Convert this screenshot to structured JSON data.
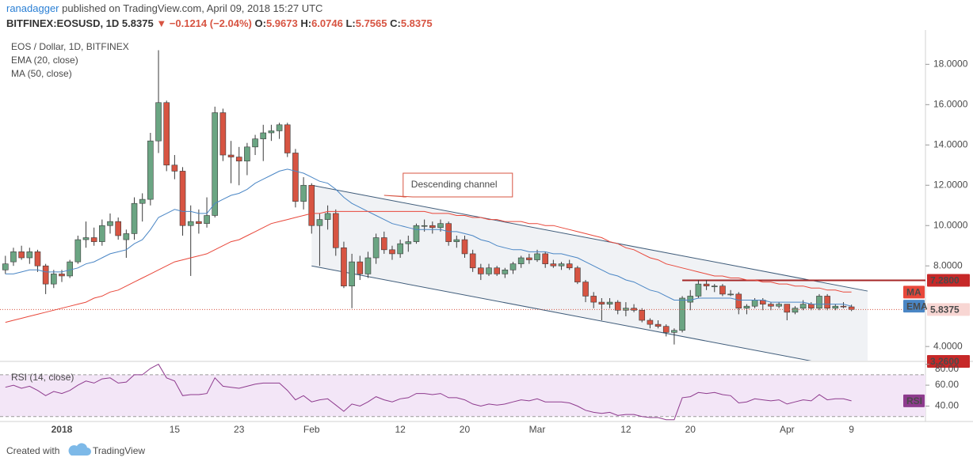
{
  "header": {
    "author": "ranadagger",
    "published": "published on TradingView.com, April 09, 2018 15:27 UTC",
    "symbol": "BITFINEX:EOSUSD, 1D",
    "last": "5.8375",
    "change": "▼ −0.1214 (−2.04%)",
    "ohlc": [
      {
        "label": "O:",
        "value": "5.9673"
      },
      {
        "label": "H:",
        "value": "6.0746"
      },
      {
        "label": "L:",
        "value": "5.7565"
      },
      {
        "label": "C:",
        "value": "5.8375"
      }
    ]
  },
  "chart_data": [
    {
      "type": "candlestick",
      "title": "EOS / Dollar, 1D, BITFINEX",
      "categories": [
        null,
        null,
        null,
        null,
        null,
        null,
        null,
        "2018",
        null,
        null,
        null,
        null,
        null,
        null,
        null,
        null,
        null,
        null,
        null,
        null,
        null,
        "15",
        null,
        null,
        null,
        null,
        null,
        null,
        null,
        "23",
        null,
        null,
        null,
        null,
        null,
        null,
        null,
        null,
        "Feb",
        null,
        null,
        null,
        null,
        null,
        null,
        null,
        null,
        null,
        null,
        "12",
        null,
        null,
        null,
        null,
        null,
        null,
        null,
        "20",
        null,
        null,
        null,
        null,
        null,
        null,
        null,
        null,
        "Mar",
        null,
        null,
        null,
        null,
        null,
        null,
        null,
        null,
        null,
        null,
        "12",
        null,
        null,
        null,
        null,
        null,
        null,
        null,
        "20",
        null,
        null,
        null,
        null,
        null,
        null,
        null,
        null,
        null,
        null,
        null,
        "Apr",
        null,
        null,
        null,
        null,
        null,
        null,
        null,
        "9"
      ],
      "open": [
        7.8,
        8.2,
        8.7,
        8.4,
        8.7,
        8.0,
        7.1,
        7.6,
        7.5,
        8.2,
        9.3,
        9.4,
        9.2,
        10.0,
        10.2,
        9.3,
        9.6,
        11.1,
        11.3,
        14.2,
        16.1,
        13.0,
        12.7,
        10.0,
        10.2,
        10.1,
        10.5,
        15.6,
        13.5,
        13.4,
        13.2,
        13.9,
        14.3,
        14.6,
        14.7,
        15.0,
        13.6,
        11.2,
        12.0,
        10.0,
        10.3,
        10.6,
        8.9,
        7.0,
        8.2,
        7.6,
        8.4,
        9.4,
        8.8,
        8.6,
        9.1,
        9.2,
        10.0,
        10.0,
        9.9,
        10.1,
        9.2,
        9.3,
        8.6,
        7.9,
        7.6,
        7.9,
        7.6,
        7.8,
        8.1,
        8.4,
        8.3,
        8.6,
        8.1,
        8.0,
        8.1,
        7.9,
        7.2,
        6.5,
        6.2,
        6.1,
        6.2,
        5.8,
        5.9,
        5.8,
        5.3,
        5.1,
        5.0,
        4.7,
        4.8,
        6.2,
        6.5,
        7.1,
        7.0,
        7.0,
        6.6,
        6.6,
        5.9,
        6.0,
        6.3,
        6.1,
        6.0,
        6.1,
        5.7,
        5.9,
        6.1,
        5.9,
        6.5,
        5.9,
        6.0,
        5.9673
      ],
      "high": [
        8.5,
        8.9,
        9.0,
        8.9,
        8.8,
        8.1,
        7.8,
        7.8,
        8.3,
        9.5,
        10.2,
        9.9,
        10.3,
        10.6,
        10.4,
        9.8,
        11.4,
        11.6,
        14.6,
        18.7,
        16.2,
        13.5,
        12.9,
        11.0,
        10.8,
        11.4,
        15.9,
        15.8,
        14.2,
        13.9,
        14.1,
        14.5,
        15.0,
        15.0,
        15.1,
        15.1,
        13.8,
        12.4,
        12.1,
        10.6,
        11.0,
        10.8,
        9.2,
        8.6,
        8.5,
        8.7,
        9.6,
        9.7,
        9.0,
        9.3,
        9.5,
        10.1,
        10.3,
        10.2,
        10.3,
        10.2,
        9.5,
        9.5,
        8.8,
        8.1,
        8.1,
        8.0,
        7.9,
        8.2,
        8.5,
        8.6,
        8.8,
        8.7,
        8.3,
        8.2,
        8.3,
        8.0,
        7.3,
        6.7,
        6.4,
        6.4,
        6.3,
        6.2,
        6.1,
        5.9,
        5.4,
        5.3,
        5.1,
        4.9,
        6.5,
        6.8,
        7.3,
        7.3,
        7.1,
        7.1,
        6.8,
        6.7,
        6.1,
        6.4,
        6.4,
        6.2,
        6.2,
        6.1,
        6.0,
        6.3,
        6.2,
        6.6,
        6.6,
        6.1,
        6.2,
        6.0746
      ],
      "low": [
        7.6,
        8.0,
        8.3,
        8.1,
        7.7,
        6.6,
        6.9,
        7.2,
        7.4,
        8.1,
        8.9,
        9.0,
        9.0,
        9.6,
        9.3,
        8.4,
        9.3,
        10.2,
        11.0,
        13.6,
        12.7,
        12.3,
        9.5,
        7.5,
        9.6,
        9.9,
        10.4,
        13.2,
        12.1,
        12.0,
        12.5,
        13.5,
        13.2,
        14.2,
        14.3,
        13.4,
        10.9,
        10.8,
        9.6,
        8.0,
        9.8,
        8.5,
        6.9,
        5.9,
        7.3,
        7.4,
        8.1,
        8.6,
        8.3,
        8.4,
        8.7,
        9.1,
        9.7,
        9.6,
        9.7,
        9.0,
        8.9,
        8.4,
        7.7,
        7.3,
        7.5,
        7.5,
        7.4,
        7.6,
        7.9,
        8.1,
        8.2,
        7.9,
        7.9,
        7.8,
        7.8,
        7.1,
        6.2,
        5.9,
        5.3,
        5.9,
        5.6,
        5.5,
        5.7,
        5.2,
        4.9,
        4.9,
        4.5,
        4.1,
        4.7,
        5.8,
        6.4,
        6.8,
        6.7,
        6.5,
        6.5,
        5.6,
        5.6,
        5.9,
        5.8,
        5.8,
        5.9,
        5.3,
        5.6,
        5.8,
        5.8,
        5.8,
        5.8,
        5.8,
        5.9,
        5.7565
      ],
      "close": [
        8.1,
        8.7,
        8.4,
        8.7,
        8.0,
        7.1,
        7.6,
        7.5,
        8.2,
        9.3,
        9.4,
        9.2,
        10.0,
        10.2,
        9.5,
        9.6,
        11.1,
        11.3,
        14.2,
        16.1,
        13.0,
        12.7,
        10.0,
        10.2,
        10.1,
        10.5,
        15.6,
        13.5,
        13.4,
        13.2,
        13.9,
        14.3,
        14.6,
        14.7,
        15.0,
        13.6,
        11.2,
        12.0,
        10.0,
        10.3,
        10.6,
        8.9,
        7.0,
        8.2,
        7.6,
        8.4,
        9.4,
        8.8,
        8.6,
        9.1,
        9.2,
        10.0,
        10.0,
        9.9,
        10.1,
        9.2,
        9.3,
        8.6,
        7.9,
        7.6,
        7.9,
        7.6,
        7.8,
        8.1,
        8.4,
        8.3,
        8.6,
        8.1,
        8.0,
        8.1,
        7.9,
        7.2,
        6.5,
        6.2,
        6.1,
        6.2,
        5.8,
        5.9,
        5.8,
        5.3,
        5.1,
        5.0,
        4.7,
        4.8,
        6.4,
        6.5,
        7.1,
        7.0,
        7.0,
        6.6,
        6.6,
        5.9,
        6.0,
        6.3,
        6.1,
        6.0,
        6.1,
        5.7,
        5.9,
        6.1,
        5.9,
        6.5,
        5.9,
        6.0,
        5.97,
        5.8375
      ],
      "up_color": "#6ba583",
      "down_color": "#d75442",
      "series": [
        {
          "name": "EMA (20, close)",
          "tag": "EMA",
          "color": "#4a86c5",
          "values": [
            7.6,
            7.6,
            7.7,
            7.8,
            7.8,
            7.7,
            7.7,
            7.7,
            7.8,
            7.9,
            8.1,
            8.2,
            8.4,
            8.6,
            8.7,
            8.8,
            9.1,
            9.3,
            9.8,
            10.4,
            10.6,
            10.8,
            10.7,
            10.7,
            10.6,
            10.6,
            11.1,
            11.3,
            11.5,
            11.6,
            11.8,
            12.1,
            12.3,
            12.5,
            12.7,
            12.8,
            12.7,
            12.6,
            12.4,
            12.2,
            12.1,
            11.8,
            11.4,
            11.1,
            10.9,
            10.7,
            10.5,
            10.3,
            10.1,
            10.0,
            9.9,
            9.8,
            9.8,
            9.8,
            9.8,
            9.7,
            9.7,
            9.6,
            9.5,
            9.3,
            9.2,
            9.0,
            8.9,
            8.8,
            8.8,
            8.7,
            8.7,
            8.7,
            8.6,
            8.6,
            8.5,
            8.4,
            8.2,
            8.0,
            7.8,
            7.6,
            7.5,
            7.3,
            7.2,
            7.0,
            6.8,
            6.7,
            6.5,
            6.3,
            6.3,
            6.3,
            6.4,
            6.4,
            6.4,
            6.4,
            6.4,
            6.3,
            6.3,
            6.3,
            6.3,
            6.2,
            6.2,
            6.2,
            6.2,
            6.2,
            6.1,
            6.1,
            6.1,
            6.1,
            6.1,
            6.0
          ]
        },
        {
          "name": "MA (50, close)",
          "tag": "MA",
          "color": "#e8473a",
          "values": [
            5.2,
            5.3,
            5.4,
            5.5,
            5.6,
            5.7,
            5.8,
            5.9,
            6.0,
            6.1,
            6.2,
            6.4,
            6.5,
            6.7,
            6.8,
            7.0,
            7.2,
            7.4,
            7.6,
            7.8,
            8.0,
            8.2,
            8.3,
            8.4,
            8.5,
            8.6,
            8.8,
            9.0,
            9.2,
            9.3,
            9.5,
            9.7,
            9.9,
            10.1,
            10.2,
            10.3,
            10.4,
            10.5,
            10.6,
            10.6,
            10.7,
            10.7,
            10.7,
            10.7,
            10.7,
            10.7,
            10.7,
            10.7,
            10.7,
            10.7,
            10.7,
            10.7,
            10.7,
            10.6,
            10.6,
            10.6,
            10.5,
            10.5,
            10.4,
            10.4,
            10.3,
            10.3,
            10.2,
            10.2,
            10.2,
            10.1,
            10.1,
            10.0,
            10.0,
            9.9,
            9.8,
            9.7,
            9.6,
            9.5,
            9.4,
            9.2,
            9.1,
            8.9,
            8.8,
            8.6,
            8.4,
            8.3,
            8.1,
            8.0,
            7.9,
            7.8,
            7.7,
            7.6,
            7.5,
            7.5,
            7.4,
            7.4,
            7.3,
            7.3,
            7.2,
            7.2,
            7.1,
            7.1,
            7.0,
            7.0,
            6.9,
            6.9,
            6.8,
            6.8,
            6.7,
            6.7
          ]
        }
      ],
      "ylim": [
        3.3,
        19.7
      ],
      "yticks": [
        {
          "value": 4,
          "label": "4.0000"
        },
        {
          "value": 8,
          "label": "8.0000"
        },
        {
          "value": 10,
          "label": "10.0000"
        },
        {
          "value": 12,
          "label": "12.0000"
        },
        {
          "value": 14,
          "label": "14.0000"
        },
        {
          "value": 16,
          "label": "16.0000"
        },
        {
          "value": 18,
          "label": "18.0000"
        }
      ],
      "last_price": 5.8375,
      "hlines": [
        {
          "value": 7.28,
          "label": "7.2800",
          "start": 84
        },
        {
          "value": 3.26,
          "label": "3.2600"
        }
      ],
      "channel": {
        "upper": [
          [
            38,
            12.0
          ],
          [
            107,
            6.75
          ]
        ],
        "lower": [
          [
            38,
            8.0
          ],
          [
            107,
            2.75
          ]
        ]
      },
      "annotation": {
        "text": "Descending channel",
        "index": 47,
        "value": 11.5
      }
    },
    {
      "type": "line",
      "title": "RSI (14, close)",
      "series": [
        {
          "name": "RSI",
          "color": "#8e3b8e",
          "values": [
            58,
            60,
            57,
            59,
            55,
            50,
            54,
            52,
            55,
            60,
            64,
            62,
            66,
            67,
            62,
            63,
            70,
            70,
            76,
            80,
            67,
            64,
            50,
            51,
            51,
            52,
            67,
            59,
            58,
            57,
            59,
            61,
            62,
            62,
            62,
            55,
            46,
            50,
            44,
            46,
            47,
            41,
            35,
            42,
            40,
            44,
            49,
            46,
            44,
            47,
            48,
            52,
            52,
            51,
            52,
            48,
            48,
            46,
            42,
            40,
            42,
            41,
            42,
            44,
            46,
            45,
            47,
            44,
            44,
            44,
            43,
            40,
            36,
            34,
            33,
            34,
            31,
            32,
            32,
            30,
            29,
            29,
            27,
            27,
            48,
            49,
            53,
            52,
            53,
            51,
            50,
            43,
            44,
            47,
            46,
            45,
            46,
            42,
            44,
            46,
            45,
            51,
            46,
            47,
            47,
            45
          ]
        }
      ],
      "ylim": [
        26,
        82
      ],
      "yticks": [
        {
          "value": 40,
          "label": "40.00"
        },
        {
          "value": 60,
          "label": "60.00"
        },
        {
          "value": 80,
          "label": "80.00"
        }
      ],
      "bands": [
        30,
        70
      ]
    }
  ],
  "footer": {
    "created": "Created with",
    "brand": "TradingView"
  }
}
